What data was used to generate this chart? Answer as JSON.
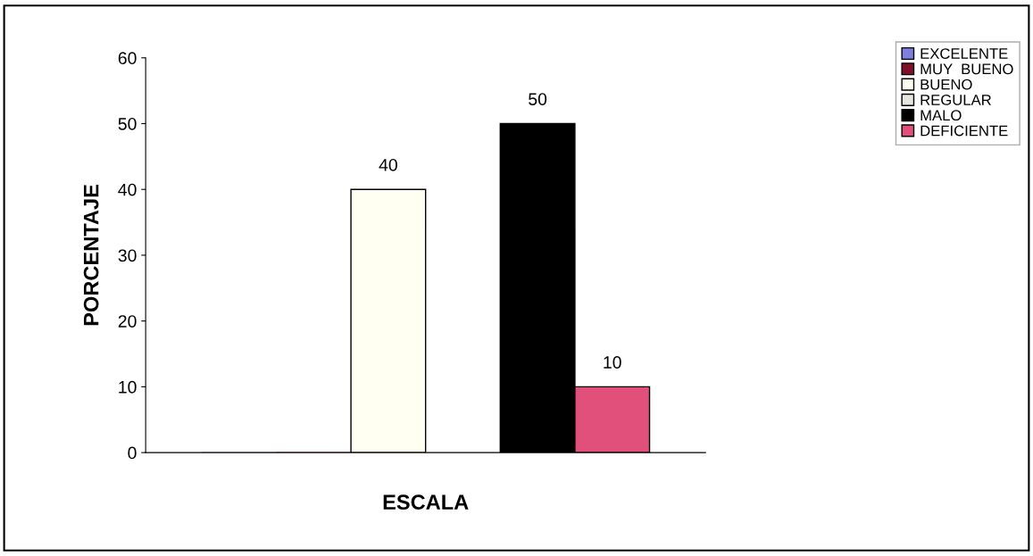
{
  "chart_data": {
    "type": "bar",
    "xlabel": "ESCALA",
    "ylabel": "PORCENTAJE",
    "categories": [
      null
    ],
    "series": [
      {
        "name": "EXCELENTE",
        "color": "#7f7fdf",
        "values": [
          0
        ],
        "value_labels": [
          null
        ]
      },
      {
        "name": "MUY  BUENO",
        "color": "#80102a",
        "values": [
          0
        ],
        "value_labels": [
          null
        ]
      },
      {
        "name": "BUENO",
        "color": "#fffff2",
        "values": [
          40
        ],
        "value_labels": [
          "40"
        ]
      },
      {
        "name": "REGULAR",
        "color": "#e6e6df",
        "values": [
          0
        ],
        "value_labels": [
          null
        ]
      },
      {
        "name": "MALO",
        "color": "#000000",
        "values": [
          50
        ],
        "value_labels": [
          "50"
        ]
      },
      {
        "name": "DEFICIENTE",
        "color": "#e0507a",
        "values": [
          10
        ],
        "value_labels": [
          "10"
        ]
      }
    ],
    "ylim": [
      0,
      60
    ],
    "yticks": [
      0,
      10,
      20,
      30,
      40,
      50,
      60
    ],
    "grid": false,
    "legend": "top right"
  }
}
